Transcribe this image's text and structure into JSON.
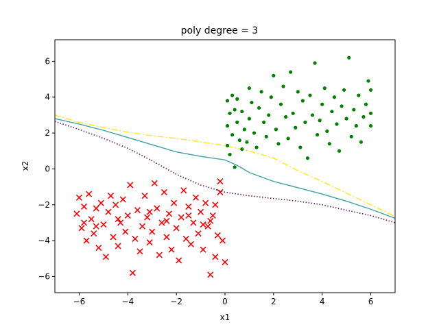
{
  "chart_data": {
    "type": "scatter",
    "title": "poly degree = 3",
    "xlabel": "x1",
    "ylabel": "x2",
    "xlim": [
      -7,
      7
    ],
    "ylim": [
      -6.9,
      7.2
    ],
    "xticks": [
      -6,
      -4,
      -2,
      0,
      2,
      4,
      6
    ],
    "yticks": [
      -6,
      -4,
      -2,
      0,
      2,
      4,
      6
    ],
    "xtick_labels": [
      "−6",
      "−4",
      "−2",
      "0",
      "2",
      "4",
      "6"
    ],
    "ytick_labels": [
      "−6",
      "−4",
      "−2",
      "0",
      "2",
      "4",
      "6"
    ],
    "grid": false,
    "colors": {
      "class_pos": "#008000",
      "class_neg": "#ff0000",
      "boundary_mid": "#4aa7a5",
      "boundary_upper": "#fde725",
      "boundary_lower": "#6a2a6a"
    },
    "series": [
      {
        "marker": "dot",
        "color": "#008000",
        "points": [
          [
            0.4,
            0.1
          ],
          [
            0.1,
            1.3
          ],
          [
            0.2,
            0.8
          ],
          [
            0.3,
            1.9
          ],
          [
            0.1,
            2.4
          ],
          [
            0.2,
            3.1
          ],
          [
            0.1,
            3.8
          ],
          [
            0.3,
            4.1
          ],
          [
            0.4,
            3.3
          ],
          [
            0.5,
            2.6
          ],
          [
            0.6,
            1.6
          ],
          [
            0.7,
            1.1
          ],
          [
            0.5,
            3.9
          ],
          [
            0.7,
            3.2
          ],
          [
            0.8,
            2.2
          ],
          [
            0.9,
            1.5
          ],
          [
            1.0,
            4.5
          ],
          [
            1.1,
            3.7
          ],
          [
            1.0,
            2.8
          ],
          [
            1.2,
            2.0
          ],
          [
            1.3,
            1.2
          ],
          [
            1.4,
            3.4
          ],
          [
            1.5,
            4.3
          ],
          [
            1.6,
            2.6
          ],
          [
            1.7,
            1.8
          ],
          [
            1.8,
            3.0
          ],
          [
            1.9,
            4.0
          ],
          [
            2.0,
            5.2
          ],
          [
            2.1,
            2.2
          ],
          [
            2.2,
            1.4
          ],
          [
            2.3,
            3.6
          ],
          [
            2.4,
            4.6
          ],
          [
            2.5,
            2.9
          ],
          [
            2.6,
            1.7
          ],
          [
            2.7,
            5.4
          ],
          [
            2.8,
            3.1
          ],
          [
            2.9,
            2.3
          ],
          [
            3.0,
            4.3
          ],
          [
            3.1,
            1.2
          ],
          [
            3.2,
            3.8
          ],
          [
            3.3,
            2.6
          ],
          [
            3.4,
            0.6
          ],
          [
            3.5,
            4.1
          ],
          [
            3.6,
            3.0
          ],
          [
            3.7,
            5.9
          ],
          [
            3.8,
            1.9
          ],
          [
            3.9,
            2.7
          ],
          [
            4.0,
            3.6
          ],
          [
            4.1,
            4.5
          ],
          [
            4.2,
            2.1
          ],
          [
            4.3,
            1.4
          ],
          [
            4.4,
            3.2
          ],
          [
            4.5,
            4.0
          ],
          [
            4.6,
            2.5
          ],
          [
            4.7,
            1.0
          ],
          [
            4.8,
            3.5
          ],
          [
            4.9,
            4.4
          ],
          [
            5.0,
            2.8
          ],
          [
            5.1,
            6.2
          ],
          [
            5.2,
            1.8
          ],
          [
            5.3,
            3.3
          ],
          [
            5.4,
            2.4
          ],
          [
            5.5,
            4.1
          ],
          [
            5.6,
            1.5
          ],
          [
            5.7,
            2.9
          ],
          [
            5.8,
            3.6
          ],
          [
            5.9,
            4.9
          ],
          [
            6.0,
            2.4
          ],
          [
            6.0,
            3.1
          ],
          [
            6.0,
            4.4
          ]
        ]
      },
      {
        "marker": "x",
        "color": "#ff0000",
        "points": [
          [
            -6.1,
            -2.5
          ],
          [
            -6.0,
            -1.6
          ],
          [
            -5.9,
            -3.3
          ],
          [
            -5.8,
            -2.1
          ],
          [
            -5.7,
            -4.0
          ],
          [
            -5.6,
            -1.4
          ],
          [
            -5.5,
            -2.8
          ],
          [
            -5.4,
            -3.6
          ],
          [
            -5.3,
            -2.2
          ],
          [
            -5.2,
            -4.4
          ],
          [
            -5.1,
            -1.9
          ],
          [
            -5.0,
            -3.1
          ],
          [
            -4.9,
            -4.9
          ],
          [
            -4.8,
            -2.4
          ],
          [
            -4.7,
            -1.5
          ],
          [
            -4.6,
            -3.8
          ],
          [
            -4.5,
            -2.0
          ],
          [
            -4.4,
            -4.3
          ],
          [
            -4.3,
            -3.0
          ],
          [
            -4.2,
            -1.7
          ],
          [
            -4.1,
            -3.5
          ],
          [
            -4.0,
            -2.6
          ],
          [
            -3.9,
            -0.9
          ],
          [
            -3.8,
            -5.8
          ],
          [
            -3.7,
            -3.9
          ],
          [
            -3.6,
            -2.3
          ],
          [
            -3.5,
            -4.6
          ],
          [
            -3.4,
            -3.2
          ],
          [
            -3.3,
            -1.5
          ],
          [
            -3.2,
            -2.7
          ],
          [
            -3.1,
            -4.1
          ],
          [
            -3.0,
            -3.5
          ],
          [
            -2.9,
            -0.8
          ],
          [
            -2.8,
            -2.2
          ],
          [
            -2.7,
            -4.8
          ],
          [
            -2.6,
            -3.0
          ],
          [
            -2.5,
            -1.3
          ],
          [
            -2.4,
            -3.8
          ],
          [
            -2.3,
            -2.5
          ],
          [
            -2.2,
            -4.5
          ],
          [
            -2.1,
            -1.9
          ],
          [
            -2.0,
            -3.3
          ],
          [
            -1.9,
            -5.1
          ],
          [
            -1.8,
            -2.7
          ],
          [
            -1.7,
            -1.2
          ],
          [
            -1.6,
            -3.9
          ],
          [
            -1.5,
            -2.1
          ],
          [
            -1.4,
            -4.2
          ],
          [
            -1.3,
            -3.0
          ],
          [
            -1.2,
            -1.6
          ],
          [
            -1.1,
            -3.6
          ],
          [
            -1.0,
            -2.4
          ],
          [
            -0.9,
            -4.5
          ],
          [
            -0.8,
            -1.9
          ],
          [
            -0.7,
            -3.2
          ],
          [
            -0.6,
            -5.9
          ],
          [
            -0.5,
            -2.6
          ],
          [
            -0.4,
            -4.9
          ],
          [
            -0.3,
            -3.7
          ],
          [
            -0.2,
            -0.7
          ],
          [
            -0.1,
            -4.0
          ],
          [
            0.0,
            -5.2
          ],
          [
            -0.2,
            -1.3
          ],
          [
            -0.4,
            -2.0
          ],
          [
            -0.6,
            -2.9
          ],
          [
            -0.9,
            -3.1
          ],
          [
            -1.5,
            -2.6
          ],
          [
            -2.4,
            -2.9
          ],
          [
            -3.1,
            -2.4
          ],
          [
            -4.4,
            -2.8
          ],
          [
            -5.3,
            -3.2
          ],
          [
            -5.8,
            -3.0
          ]
        ]
      }
    ],
    "lines": [
      {
        "color": "#4aa7a5",
        "style": "solid",
        "points": [
          [
            -7,
            2.8
          ],
          [
            -6,
            2.5
          ],
          [
            -5,
            2.15
          ],
          [
            -4,
            1.75
          ],
          [
            -3,
            1.35
          ],
          [
            -2,
            0.95
          ],
          [
            -1,
            0.7
          ],
          [
            0,
            0.5
          ],
          [
            0.5,
            0.2
          ],
          [
            1,
            -0.2
          ],
          [
            2,
            -0.7
          ],
          [
            3,
            -1.05
          ],
          [
            4,
            -1.4
          ],
          [
            5,
            -1.8
          ],
          [
            6,
            -2.25
          ],
          [
            7,
            -2.75
          ]
        ]
      },
      {
        "color": "#fde725",
        "style": "dashdot",
        "points": [
          [
            -7,
            3.0
          ],
          [
            -6,
            2.6
          ],
          [
            -5,
            2.3
          ],
          [
            -4,
            2.05
          ],
          [
            -3,
            1.85
          ],
          [
            -2,
            1.7
          ],
          [
            -1,
            1.5
          ],
          [
            0,
            1.3
          ],
          [
            1,
            1.0
          ],
          [
            2,
            0.6
          ],
          [
            3,
            -0.1
          ],
          [
            4,
            -0.7
          ],
          [
            5,
            -1.35
          ],
          [
            6,
            -2.0
          ],
          [
            7,
            -2.65
          ]
        ]
      },
      {
        "color": "#6a2a6a",
        "style": "dotted",
        "points": [
          [
            -7,
            2.65
          ],
          [
            -6,
            2.2
          ],
          [
            -5,
            1.7
          ],
          [
            -4,
            1.15
          ],
          [
            -3,
            0.45
          ],
          [
            -2,
            -0.3
          ],
          [
            -1,
            -0.9
          ],
          [
            0,
            -1.3
          ],
          [
            1,
            -1.5
          ],
          [
            2,
            -1.65
          ],
          [
            3,
            -1.8
          ],
          [
            4,
            -2.0
          ],
          [
            5,
            -2.3
          ],
          [
            6,
            -2.6
          ],
          [
            7,
            -3.0
          ]
        ]
      }
    ]
  }
}
